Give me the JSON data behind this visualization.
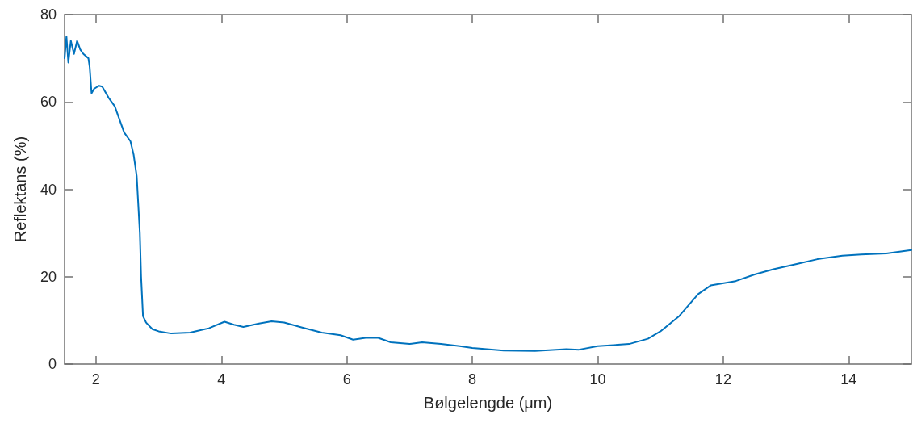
{
  "chart_data": {
    "type": "line",
    "xlabel": "Bølgelengde (μm)",
    "ylabel": "Reflektans (%)",
    "xlim": [
      1.5,
      15
    ],
    "xticks": [
      2,
      4,
      6,
      8,
      10,
      12,
      14
    ],
    "ylim": [
      0,
      80
    ],
    "yticks": [
      0,
      20,
      40,
      60,
      80
    ],
    "grid": false,
    "marker": "none",
    "line_style": "solid",
    "series": [
      {
        "color": "#0072bd",
        "x": [
          1.5,
          1.53,
          1.56,
          1.6,
          1.65,
          1.7,
          1.75,
          1.8,
          1.88,
          1.9,
          1.93,
          1.97,
          2.05,
          2.1,
          2.2,
          2.3,
          2.4,
          2.45,
          2.55,
          2.6,
          2.65,
          2.7,
          2.72,
          2.75,
          2.8,
          2.9,
          3.0,
          3.2,
          3.5,
          3.8,
          4.05,
          4.2,
          4.35,
          4.6,
          4.8,
          5.0,
          5.3,
          5.6,
          5.9,
          6.1,
          6.3,
          6.5,
          6.7,
          7.0,
          7.2,
          7.5,
          7.8,
          8.0,
          8.5,
          9.0,
          9.5,
          9.7,
          10.0,
          10.5,
          10.8,
          11.0,
          11.3,
          11.6,
          11.8,
          12.2,
          12.5,
          12.8,
          13.2,
          13.5,
          13.9,
          14.2,
          14.6,
          15.0
        ],
        "values": [
          70,
          75,
          69,
          74,
          71,
          74,
          72,
          71,
          70,
          68,
          62,
          63,
          63.7,
          63.5,
          61,
          59,
          55,
          53,
          51,
          48,
          43,
          30,
          20,
          11,
          9.5,
          8,
          7.5,
          7,
          7.2,
          8.2,
          9.7,
          9,
          8.5,
          9.3,
          9.8,
          9.5,
          8.3,
          7.2,
          6.6,
          5.6,
          6,
          6,
          5,
          4.6,
          5,
          4.6,
          4.1,
          3.7,
          3.1,
          3.0,
          3.4,
          3.3,
          4.1,
          4.6,
          5.8,
          7.5,
          11,
          16,
          18,
          19,
          20.5,
          21.7,
          23,
          24,
          24.8,
          25.1,
          25.3,
          26.1
        ]
      }
    ]
  }
}
